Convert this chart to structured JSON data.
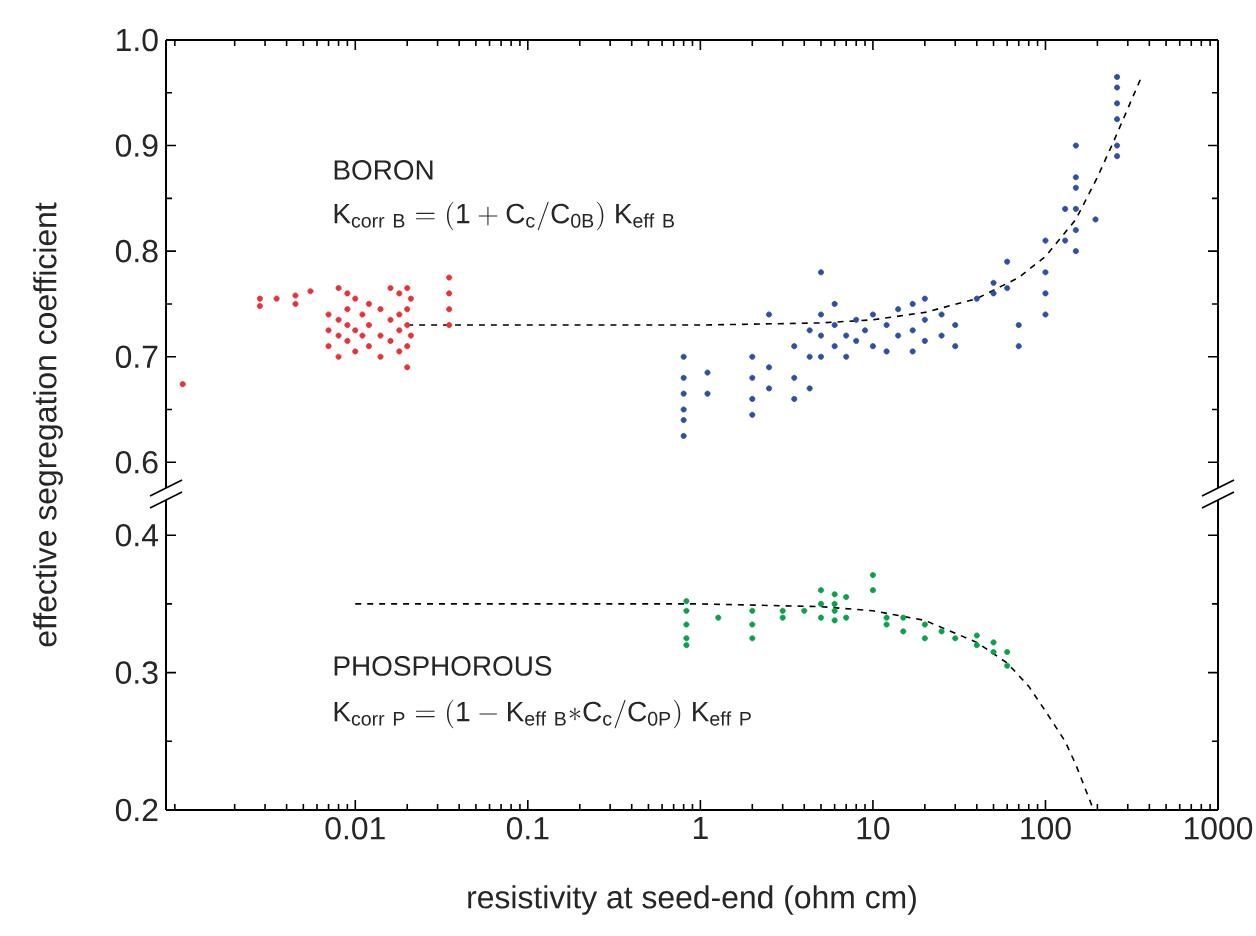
{
  "chart_data": [
    {
      "type": "scatter",
      "log": "x",
      "marker": "circle",
      "tick_labels": "y",
      "ylabel": "effective segregation coefficient",
      "xlim": [
        0.0008,
        1000
      ],
      "xticks": [
        0.01,
        0.1,
        1,
        10,
        100,
        1000
      ],
      "ylim": [
        0.57,
        1.0
      ],
      "yticks": [
        0.6,
        0.7,
        0.8,
        0.9,
        {
          "value": 1.0,
          "label": "1.0"
        }
      ],
      "annotations": [
        "BORON",
        "\\mathrm{K}_{\\mathrm{corr\\ B}} = (\\mathrm{1}+ \\mathrm{C}_{\\mathrm{c}}/\\mathrm{C}_{\\mathrm{0B}})\\ \\mathrm{K}_{\\mathrm{eff\\ B}}"
      ],
      "series": [
        {
          "color": "#e8313a",
          "x": [
            0.001,
            0.0028,
            0.0028,
            0.0035,
            0.0045,
            0.0045,
            0.0055,
            0.007,
            0.007,
            0.007,
            0.008,
            0.008,
            0.008,
            0.008,
            0.009,
            0.009,
            0.009,
            0.009,
            0.01,
            0.01,
            0.01,
            0.011,
            0.011,
            0.012,
            0.012,
            0.012,
            0.014,
            0.014,
            0.014,
            0.016,
            0.016,
            0.016,
            0.018,
            0.018,
            0.018,
            0.018,
            0.02,
            0.02,
            0.02,
            0.02,
            0.02,
            0.021,
            0.021,
            0.035,
            0.035,
            0.035,
            0.035
          ],
          "values": [
            0.674,
            0.755,
            0.748,
            0.755,
            0.758,
            0.75,
            0.762,
            0.74,
            0.71,
            0.725,
            0.765,
            0.7,
            0.735,
            0.72,
            0.76,
            0.745,
            0.715,
            0.73,
            0.755,
            0.725,
            0.705,
            0.74,
            0.72,
            0.75,
            0.71,
            0.73,
            0.745,
            0.72,
            0.7,
            0.765,
            0.735,
            0.715,
            0.76,
            0.74,
            0.725,
            0.705,
            0.765,
            0.745,
            0.73,
            0.71,
            0.69,
            0.755,
            0.72,
            0.775,
            0.76,
            0.745,
            0.73
          ]
        },
        {
          "color": "#2e4fa3",
          "x": [
            0.8,
            0.8,
            0.8,
            0.8,
            0.8,
            0.8,
            1.1,
            1.1,
            2.0,
            2.0,
            2.0,
            2.0,
            2.5,
            2.5,
            2.5,
            3.5,
            3.5,
            3.5,
            4.3,
            4.3,
            4.3,
            5,
            5,
            5,
            5,
            6,
            6,
            6,
            7,
            7,
            8,
            8,
            9,
            10,
            10,
            12,
            12,
            14,
            14,
            17,
            17,
            17,
            20,
            20,
            20,
            25,
            25,
            30,
            30,
            40,
            50,
            50,
            60,
            60,
            70,
            70,
            100,
            100,
            100,
            100,
            130,
            130,
            150,
            150,
            150,
            150,
            150,
            150,
            195,
            260,
            260,
            260,
            260,
            260,
            260
          ],
          "values": [
            0.7,
            0.68,
            0.665,
            0.65,
            0.64,
            0.625,
            0.685,
            0.665,
            0.7,
            0.68,
            0.66,
            0.645,
            0.74,
            0.69,
            0.67,
            0.71,
            0.68,
            0.66,
            0.725,
            0.7,
            0.67,
            0.78,
            0.74,
            0.72,
            0.7,
            0.75,
            0.73,
            0.71,
            0.72,
            0.7,
            0.735,
            0.715,
            0.725,
            0.74,
            0.71,
            0.73,
            0.705,
            0.745,
            0.72,
            0.75,
            0.725,
            0.705,
            0.755,
            0.735,
            0.715,
            0.74,
            0.72,
            0.73,
            0.71,
            0.755,
            0.77,
            0.76,
            0.79,
            0.765,
            0.73,
            0.71,
            0.81,
            0.78,
            0.76,
            0.74,
            0.84,
            0.81,
            0.9,
            0.87,
            0.86,
            0.84,
            0.82,
            0.8,
            0.83,
            0.965,
            0.955,
            0.94,
            0.925,
            0.9,
            0.89
          ]
        },
        {
          "type": "line",
          "marker": "none",
          "line_style": "dashed",
          "color": "#000000",
          "x": [
            0.02,
            1,
            5,
            10,
            20,
            40,
            70,
            100,
            150,
            200,
            250,
            360
          ],
          "values": [
            0.73,
            0.73,
            0.732,
            0.735,
            0.742,
            0.755,
            0.775,
            0.795,
            0.83,
            0.87,
            0.905,
            0.965
          ]
        }
      ]
    },
    {
      "type": "scatter",
      "log": "x",
      "marker": "circle",
      "xlabel": "resistivity at seed-end (ohm cm)",
      "xlim": [
        0.0008,
        1000
      ],
      "xticks": [
        0.01,
        0.1,
        1,
        10,
        100,
        1000
      ],
      "ylim": [
        0.2,
        0.43
      ],
      "yticks": [
        0.2,
        0.3,
        0.4
      ],
      "annotations": [
        "PHOSPHOROUS",
        "\\mathrm{K}_{\\mathrm{corr\\ P}} = (\\mathrm{1} - \\mathrm{K}_{\\mathrm{eff\\ B}}{*}\\mathrm{C}_{\\mathrm{c}}/\\mathrm{C}_{\\mathrm{0P}})\\ \\mathrm{K}_{\\mathrm{eff\\ P}}"
      ],
      "series": [
        {
          "color": "#0aa14b",
          "x": [
            0.83,
            0.83,
            0.83,
            0.83,
            0.83,
            1.27,
            2,
            2,
            2,
            3,
            3,
            4,
            5,
            5,
            5,
            6,
            6,
            6,
            6,
            7,
            7,
            10,
            10,
            12,
            12,
            15,
            15,
            20,
            20,
            25,
            30,
            40,
            40,
            50,
            50,
            60,
            60
          ],
          "values": [
            0.352,
            0.345,
            0.335,
            0.325,
            0.32,
            0.34,
            0.345,
            0.335,
            0.325,
            0.34,
            0.345,
            0.345,
            0.36,
            0.35,
            0.34,
            0.357,
            0.35,
            0.345,
            0.338,
            0.355,
            0.34,
            0.371,
            0.36,
            0.34,
            0.335,
            0.34,
            0.33,
            0.335,
            0.325,
            0.33,
            0.325,
            0.327,
            0.32,
            0.322,
            0.315,
            0.315,
            0.305
          ]
        },
        {
          "type": "line",
          "marker": "none",
          "line_style": "dashed",
          "color": "#000000",
          "x": [
            0.01,
            1,
            5,
            10,
            20,
            40,
            60,
            80,
            100,
            130,
            150,
            190
          ],
          "values": [
            0.35,
            0.35,
            0.348,
            0.345,
            0.338,
            0.322,
            0.307,
            0.29,
            0.272,
            0.25,
            0.233,
            0.2
          ]
        }
      ]
    }
  ]
}
